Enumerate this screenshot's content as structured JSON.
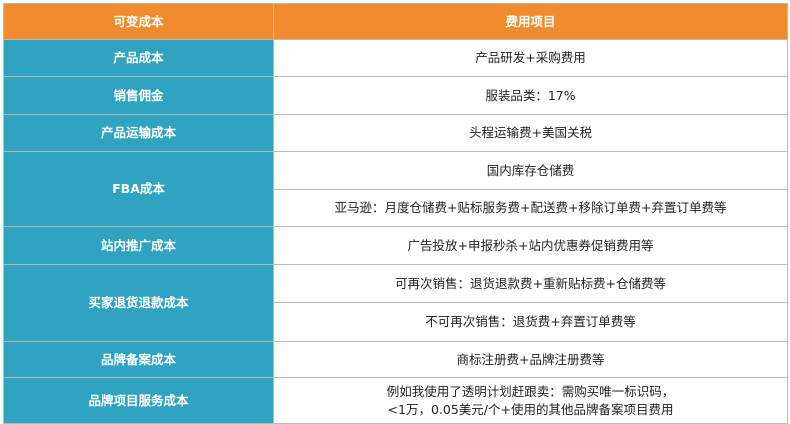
{
  "header": {
    "col1": "可变成本",
    "col2": "费用项目"
  },
  "rows": [
    {
      "category": "产品成本",
      "items": [
        "产品研发+采购费用"
      ]
    },
    {
      "category": "销售佣金",
      "items": [
        "服装品类：17%"
      ]
    },
    {
      "category": "产品运输成本",
      "items": [
        "头程运输费+美国关税"
      ]
    },
    {
      "category": "FBA成本",
      "items": [
        "国内库存仓储费",
        "亚马逊：月度仓储费+贴标服务费+配送费+移除订单费+弃置订单费等"
      ]
    },
    {
      "category": "站内推广成本",
      "items": [
        "广告投放+申报秒杀+站内优惠券促销费用等"
      ]
    },
    {
      "category": "买家退货退款成本",
      "items": [
        "可再次销售：退货退款费+重新贴标费+仓储费等",
        "不可再次销售：退货费+弃置订单费等"
      ]
    },
    {
      "category": "品牌备案成本",
      "items": [
        "商标注册费+品牌注册费等"
      ]
    },
    {
      "category": "品牌项目服务成本",
      "items": [
        "例如我使用了透明计划赶跟卖：需购买唯一标识码，",
        "<1万，0.05美元/个+使用的其他品牌备案项目费用"
      ]
    }
  ],
  "colors": {
    "header_bg": "#f08c2e",
    "category_bg": "#2fa3bf",
    "border": "#b9b9b9"
  }
}
